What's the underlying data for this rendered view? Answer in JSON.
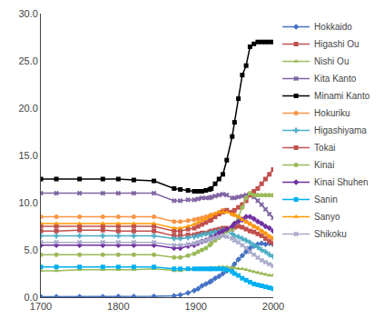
{
  "chart_data": {
    "type": "line",
    "x": [
      1700,
      1720,
      1750,
      1780,
      1800,
      1820,
      1846,
      1872,
      1880,
      1890,
      1898,
      1903,
      1908,
      1913,
      1918,
      1920,
      1925,
      1930,
      1935,
      1940,
      1947,
      1950,
      1955,
      1960,
      1965,
      1970,
      1975,
      1980,
      1985,
      1990,
      1995,
      2000
    ],
    "series": [
      {
        "name": "Hokkaido",
        "color": "#4472C4",
        "marker": "diamond",
        "values": [
          0.05,
          0.05,
          0.05,
          0.05,
          0.07,
          0.08,
          0.09,
          0.15,
          0.25,
          0.45,
          0.7,
          0.9,
          1.2,
          1.4,
          1.6,
          1.7,
          2.0,
          2.2,
          2.5,
          2.8,
          3.1,
          3.5,
          4.0,
          4.4,
          4.8,
          5.2,
          5.4,
          5.6,
          5.7,
          5.6,
          5.7,
          5.6
        ]
      },
      {
        "name": "Higashi Ou",
        "color": "#C0504D",
        "marker": "square",
        "values": [
          7.0,
          7.0,
          7.1,
          7.1,
          7.0,
          7.0,
          7.0,
          6.5,
          6.5,
          6.6,
          6.6,
          6.7,
          6.8,
          6.8,
          6.9,
          7.0,
          7.1,
          7.2,
          7.3,
          7.3,
          7.2,
          7.4,
          7.5,
          7.4,
          7.2,
          7.0,
          6.9,
          6.7,
          6.5,
          6.2,
          5.9,
          5.7
        ]
      },
      {
        "name": "Nishi Ou",
        "color": "#9BBB59",
        "marker": "triangle",
        "values": [
          2.8,
          2.8,
          2.9,
          2.9,
          2.9,
          2.9,
          3.0,
          2.8,
          2.8,
          2.9,
          2.9,
          3.0,
          3.0,
          3.0,
          3.0,
          3.1,
          3.1,
          3.2,
          3.2,
          3.2,
          3.1,
          3.1,
          3.0,
          3.0,
          2.9,
          2.8,
          2.7,
          2.6,
          2.5,
          2.4,
          2.3,
          2.3
        ]
      },
      {
        "name": "Kita Kanto",
        "color": "#8064A2",
        "marker": "x",
        "values": [
          11.0,
          11.0,
          11.0,
          11.0,
          11.0,
          11.0,
          11.0,
          10.2,
          10.2,
          10.3,
          10.3,
          10.4,
          10.5,
          10.5,
          10.5,
          10.6,
          10.7,
          10.8,
          10.9,
          10.8,
          10.5,
          10.5,
          10.6,
          10.7,
          10.8,
          10.8,
          10.6,
          10.2,
          9.8,
          9.3,
          8.8,
          8.4
        ]
      },
      {
        "name": "Minami Kanto",
        "color": "#000000",
        "marker": "square",
        "values": [
          12.5,
          12.5,
          12.5,
          12.5,
          12.5,
          12.4,
          12.3,
          11.5,
          11.4,
          11.3,
          11.2,
          11.2,
          11.2,
          11.3,
          11.4,
          11.5,
          12.0,
          12.5,
          13.0,
          14.5,
          17.0,
          18.5,
          21.0,
          23.5,
          24.5,
          26.5,
          26.8,
          27.0,
          27.0,
          27.0,
          27.0,
          27.0
        ]
      },
      {
        "name": "Hokuriku",
        "color": "#F79646",
        "marker": "circle",
        "values": [
          8.5,
          8.5,
          8.5,
          8.5,
          8.5,
          8.5,
          8.5,
          8.0,
          8.0,
          8.1,
          8.2,
          8.3,
          8.4,
          8.5,
          8.6,
          8.7,
          8.8,
          9.0,
          9.2,
          9.2,
          8.8,
          8.7,
          8.5,
          8.3,
          8.0,
          7.8,
          7.5,
          7.3,
          7.0,
          6.7,
          6.4,
          6.2
        ]
      },
      {
        "name": "Higashiyama",
        "color": "#4BACC6",
        "marker": "cross",
        "values": [
          6.5,
          6.5,
          6.5,
          6.5,
          6.5,
          6.5,
          6.5,
          6.2,
          6.2,
          6.3,
          6.4,
          6.5,
          6.6,
          6.7,
          6.7,
          6.8,
          6.9,
          7.0,
          7.1,
          7.0,
          6.7,
          6.5,
          6.4,
          6.2,
          6.0,
          5.8,
          5.5,
          5.3,
          5.0,
          4.8,
          4.5,
          4.3
        ]
      },
      {
        "name": "Tokai",
        "color": "#C0504D",
        "marker": "square",
        "values": [
          7.5,
          7.5,
          7.5,
          7.5,
          7.5,
          7.5,
          7.5,
          7.0,
          7.0,
          7.2,
          7.3,
          7.5,
          7.7,
          7.9,
          8.1,
          8.2,
          8.5,
          8.8,
          9.0,
          9.2,
          9.0,
          9.2,
          9.5,
          9.8,
          10.2,
          10.8,
          11.2,
          11.5,
          12.0,
          12.5,
          13.0,
          13.5
        ]
      },
      {
        "name": "Kinai",
        "color": "#9BBB59",
        "marker": "circle",
        "values": [
          4.5,
          4.5,
          4.5,
          4.5,
          4.5,
          4.5,
          4.5,
          4.2,
          4.2,
          4.4,
          4.6,
          4.8,
          5.0,
          5.2,
          5.5,
          5.7,
          6.0,
          6.3,
          6.6,
          7.0,
          7.2,
          7.8,
          8.5,
          9.5,
          10.5,
          11.0,
          10.8,
          10.8,
          10.8,
          10.8,
          10.8,
          10.8
        ]
      },
      {
        "name": "Kinai Shuhen",
        "color": "#7030A0",
        "marker": "diamond",
        "values": [
          5.5,
          5.5,
          5.5,
          5.5,
          5.5,
          5.5,
          5.5,
          5.2,
          5.2,
          5.4,
          5.5,
          5.7,
          5.9,
          6.0,
          6.2,
          6.3,
          6.5,
          6.8,
          7.0,
          7.2,
          7.5,
          7.8,
          8.0,
          8.2,
          8.5,
          8.5,
          8.3,
          8.0,
          7.8,
          7.5,
          7.3,
          7.0
        ]
      },
      {
        "name": "Sanin",
        "color": "#00B0F0",
        "marker": "square",
        "values": [
          3.2,
          3.2,
          3.2,
          3.2,
          3.2,
          3.2,
          3.2,
          3.0,
          3.0,
          3.0,
          3.0,
          3.0,
          3.0,
          3.0,
          3.0,
          3.0,
          3.0,
          3.0,
          3.0,
          2.9,
          2.7,
          2.5,
          2.3,
          2.0,
          1.8,
          1.6,
          1.4,
          1.3,
          1.2,
          1.1,
          1.0,
          0.9
        ]
      },
      {
        "name": "Sanyo",
        "color": "#FF9900",
        "marker": "triangle",
        "values": [
          7.8,
          7.8,
          7.8,
          7.8,
          7.8,
          7.8,
          7.8,
          7.3,
          7.3,
          7.5,
          7.7,
          7.9,
          8.1,
          8.3,
          8.5,
          8.6,
          8.8,
          9.0,
          9.0,
          9.0,
          8.8,
          8.7,
          8.5,
          8.2,
          7.9,
          7.7,
          7.5,
          7.3,
          7.0,
          6.8,
          6.5,
          6.3
        ]
      },
      {
        "name": "Shikoku",
        "color": "#AAAACC",
        "marker": "x",
        "values": [
          5.8,
          5.8,
          5.8,
          5.8,
          5.8,
          5.8,
          5.8,
          5.5,
          5.5,
          5.6,
          5.7,
          5.8,
          5.9,
          6.0,
          6.1,
          6.2,
          6.3,
          6.4,
          6.5,
          6.4,
          6.2,
          6.0,
          5.8,
          5.5,
          5.2,
          4.8,
          4.5,
          4.2,
          3.9,
          3.7,
          3.5,
          3.3
        ]
      }
    ],
    "xlim": [
      1700,
      2000
    ],
    "xticks": [
      1700,
      1800,
      1900,
      2000
    ],
    "ylim": [
      0,
      30
    ],
    "yticks": [
      {
        "value": 0,
        "label": "0.0"
      },
      {
        "value": 5,
        "label": "5.0"
      },
      {
        "value": 10,
        "label": "10.0"
      },
      {
        "value": 15,
        "label": "15.0"
      },
      {
        "value": 20,
        "label": "20.0"
      },
      {
        "value": 25,
        "label": "25.0"
      },
      {
        "value": 30,
        "label": "30.0"
      }
    ],
    "grid": false,
    "legend": "right"
  }
}
